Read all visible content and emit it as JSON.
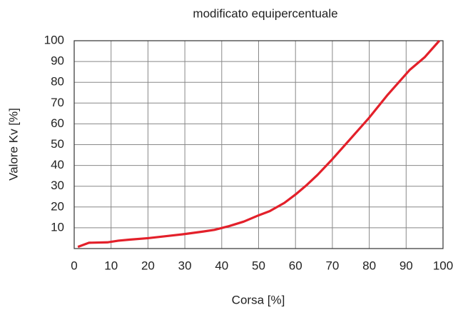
{
  "chart_data": {
    "type": "line",
    "title": "modificato equipercentuale",
    "x_label": "Corsa [%]",
    "y_label": "Valore Kv [%]",
    "series": [
      {
        "name": "modificato equipercentuale",
        "color": "#e3202a",
        "x": [
          1,
          4,
          9,
          12,
          15,
          20,
          25,
          30,
          35,
          38,
          42,
          46,
          50,
          53,
          57,
          60,
          63,
          66,
          70,
          75,
          80,
          85,
          88,
          91,
          95,
          99
        ],
        "values": [
          0.8,
          2.8,
          3,
          3.8,
          4.3,
          5,
          6,
          7,
          8.2,
          9,
          10.8,
          13,
          16,
          18,
          22,
          26,
          30.5,
          35.5,
          43,
          53,
          63,
          74,
          80,
          86,
          92,
          100
        ]
      }
    ],
    "xlim": [
      0,
      100
    ],
    "xticks": [
      0,
      10,
      20,
      30,
      40,
      50,
      60,
      70,
      80,
      90,
      100
    ],
    "ylim": [
      0,
      100
    ],
    "yticks": [
      10,
      20,
      30,
      40,
      50,
      60,
      70,
      80,
      90,
      100
    ],
    "grid": true
  }
}
